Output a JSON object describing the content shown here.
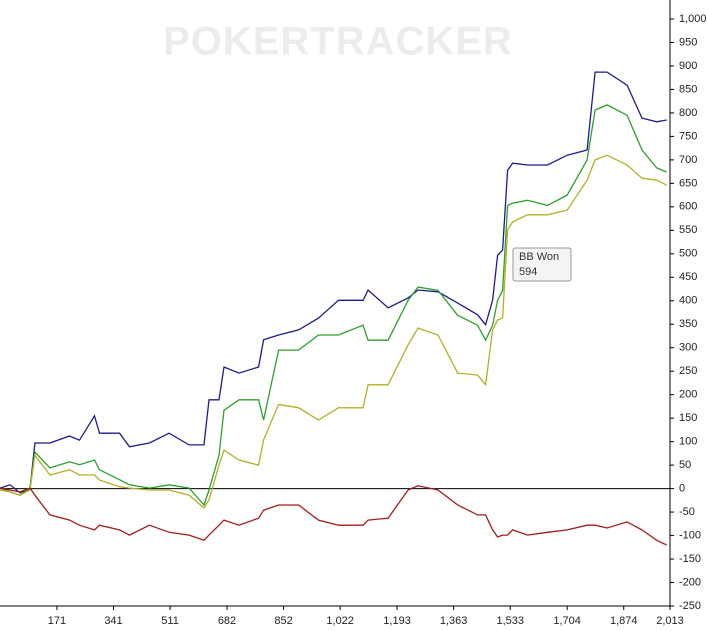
{
  "chart_data": {
    "type": "line",
    "watermark": "POKERTRACKER",
    "tooltip": {
      "title": "BB Won",
      "value": 594
    },
    "x": [
      0,
      30,
      60,
      90,
      105,
      150,
      209,
      239,
      284,
      299,
      359,
      389,
      449,
      508,
      568,
      613,
      628,
      658,
      673,
      718,
      777,
      792,
      837,
      897,
      957,
      1017,
      1091,
      1106,
      1166,
      1226,
      1256,
      1316,
      1375,
      1435,
      1459,
      1480,
      1495,
      1510,
      1525,
      1540,
      1585,
      1645,
      1704,
      1764,
      1788,
      1824,
      1884,
      1929,
      1973,
      2003
    ],
    "series": [
      {
        "color": "#1c1c8e",
        "values": [
          1,
          8,
          -9,
          -1,
          97,
          97,
          112,
          103,
          155,
          118,
          118,
          89,
          97,
          118,
          93,
          93,
          189,
          189,
          259,
          246,
          259,
          317,
          327,
          338,
          363,
          401,
          401,
          423,
          385,
          406,
          423,
          419,
          395,
          370,
          349,
          401,
          497,
          508,
          678,
          693,
          689,
          689,
          710,
          721,
          887,
          887,
          859,
          789,
          781,
          785
        ]
      },
      {
        "color": "#2ca02c",
        "values": [
          1,
          -7,
          -14,
          1,
          78,
          44,
          57,
          51,
          61,
          40,
          19,
          8,
          1,
          8,
          1,
          -35,
          -3,
          71,
          167,
          189,
          189,
          146,
          295,
          295,
          327,
          327,
          348,
          316,
          316,
          401,
          429,
          422,
          369,
          348,
          316,
          348,
          401,
          422,
          603,
          608,
          614,
          603,
          625,
          700,
          806,
          817,
          795,
          721,
          683,
          674
        ]
      },
      {
        "color": "#b3b022",
        "values": [
          -3,
          -7,
          -14,
          -3,
          71,
          29,
          40,
          29,
          29,
          18,
          4,
          1,
          -3,
          -3,
          -14,
          -41,
          -24,
          50,
          82,
          61,
          50,
          104,
          179,
          172,
          146,
          172,
          172,
          221,
          221,
          306,
          342,
          327,
          246,
          242,
          221,
          338,
          359,
          363,
          551,
          568,
          583,
          583,
          593,
          657,
          700,
          710,
          689,
          661,
          657,
          646
        ]
      },
      {
        "color": "#a11c1c",
        "values": [
          1,
          -3,
          -7,
          1,
          -14,
          -56,
          -67,
          -78,
          -88,
          -78,
          -88,
          -99,
          -78,
          -93,
          -99,
          -110,
          -99,
          -78,
          -67,
          -78,
          -63,
          -46,
          -35,
          -35,
          -67,
          -78,
          -78,
          -67,
          -63,
          -3,
          6,
          -3,
          -35,
          -56,
          -56,
          -88,
          -103,
          -99,
          -99,
          -88,
          -99,
          -93,
          -88,
          -78,
          -78,
          -84,
          -71,
          -88,
          -110,
          -120
        ]
      }
    ],
    "xlim": [
      0,
      2013
    ],
    "xticks": [
      171,
      341,
      511,
      682,
      852,
      {
        "value": 1022,
        "label": "1,022"
      },
      {
        "value": 1193,
        "label": "1,193"
      },
      {
        "value": 1363,
        "label": "1,363"
      },
      {
        "value": 1533,
        "label": "1,533"
      },
      {
        "value": 1704,
        "label": "1,704"
      },
      {
        "value": 1874,
        "label": "1,874"
      },
      {
        "value": 2013,
        "label": "2,013"
      }
    ],
    "ylim": [
      -250,
      1000
    ],
    "yticks": [
      -250,
      -200,
      -150,
      -100,
      -50,
      0,
      50,
      100,
      150,
      200,
      250,
      300,
      350,
      400,
      450,
      500,
      550,
      600,
      650,
      700,
      750,
      800,
      850,
      900,
      950,
      {
        "value": 1000,
        "label": "1,000"
      }
    ]
  }
}
